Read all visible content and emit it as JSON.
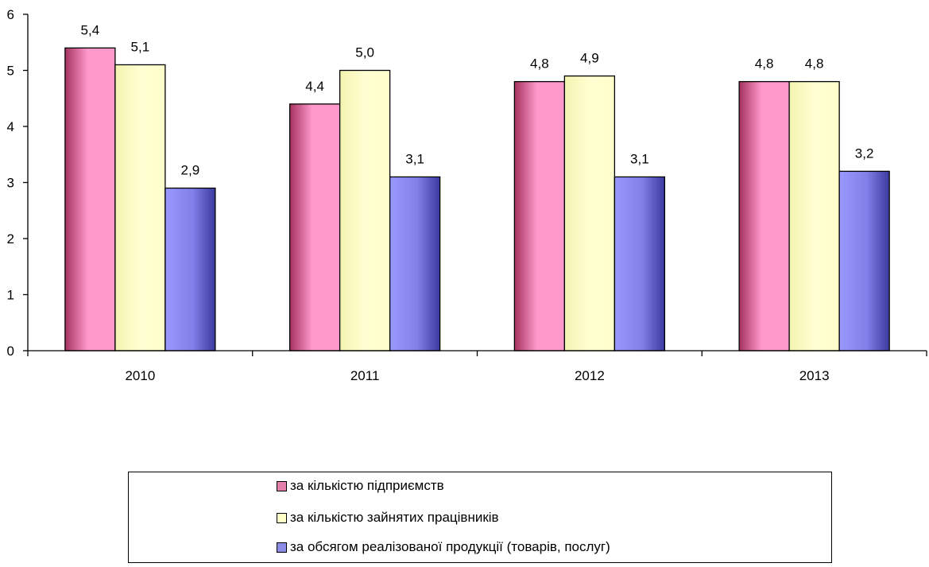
{
  "chart_data": {
    "type": "bar",
    "categories": [
      "2010",
      "2011",
      "2012",
      "2013"
    ],
    "series": [
      {
        "name": "за кількістю підприємств",
        "values": [
          5.4,
          4.4,
          4.8,
          4.8
        ],
        "labels": [
          "5,4",
          "4,4",
          "4,8",
          "4,8"
        ],
        "color": "#e37fab"
      },
      {
        "name": "за кількістю зайнятих працівників",
        "values": [
          5.1,
          5.0,
          4.9,
          4.8
        ],
        "labels": [
          "5,1",
          "5,0",
          "4,9",
          "4,8"
        ],
        "color": "#ffffc8"
      },
      {
        "name": "за обсягом реалізованої продукції (товарів, послуг)",
        "values": [
          2.9,
          3.1,
          3.1,
          3.2
        ],
        "labels": [
          "2,9",
          "3,1",
          "3,1",
          "3,2"
        ],
        "color": "#8c8ce6"
      }
    ],
    "yticks": [
      "0",
      "1",
      "2",
      "3",
      "4",
      "5",
      "6"
    ],
    "ylim": [
      0,
      6
    ],
    "grid": false,
    "legend_position": "bottom"
  }
}
